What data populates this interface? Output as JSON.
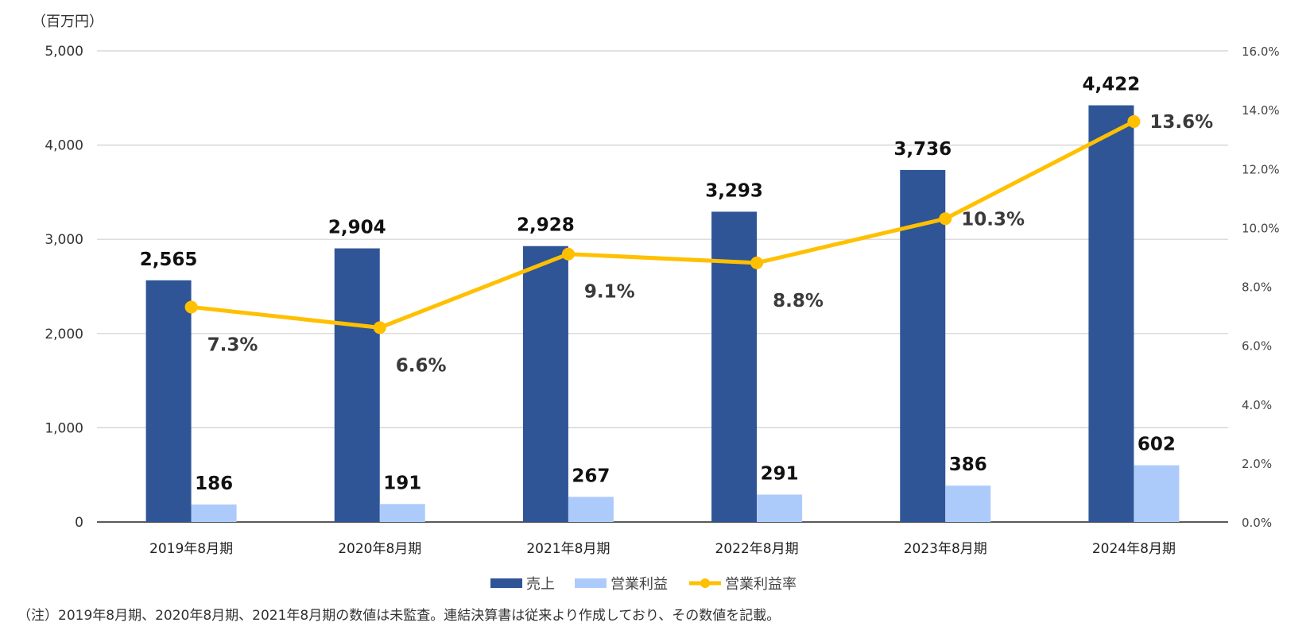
{
  "chart_data": {
    "type": "bar",
    "title": "",
    "y_unit_label": "（百万円）",
    "categories": [
      "2019年8月期",
      "2020年8月期",
      "2021年8月期",
      "2022年8月期",
      "2023年8月期",
      "2024年8月期"
    ],
    "series": [
      {
        "name": "売上",
        "type": "bar",
        "axis": "left",
        "color": "#2F5597",
        "values": [
          2565,
          2904,
          2928,
          3293,
          3736,
          4422
        ],
        "labels": [
          "2,565",
          "2,904",
          "2,928",
          "3,293",
          "3,736",
          "4,422"
        ]
      },
      {
        "name": "営業利益",
        "type": "bar",
        "axis": "left",
        "color": "#ADCBFA",
        "values": [
          186,
          191,
          267,
          291,
          386,
          602
        ],
        "labels": [
          "186",
          "191",
          "267",
          "291",
          "386",
          "602"
        ]
      },
      {
        "name": "営業利益率",
        "type": "line",
        "axis": "right",
        "color": "#FFC000",
        "values": [
          7.3,
          6.6,
          9.1,
          8.8,
          10.3,
          13.6
        ],
        "labels": [
          "7.3%",
          "6.6%",
          "9.1%",
          "8.8%",
          "10.3%",
          "13.6%"
        ]
      }
    ],
    "y_left": {
      "min": 0,
      "max": 5000,
      "ticks": [
        0,
        1000,
        2000,
        3000,
        4000,
        5000
      ],
      "tick_labels": [
        "0",
        "1,000",
        "2,000",
        "3,000",
        "4,000",
        "5,000"
      ]
    },
    "y_right": {
      "min": 0,
      "max": 16,
      "ticks": [
        0,
        2,
        4,
        6,
        8,
        10,
        12,
        14,
        16
      ],
      "tick_labels": [
        "0.0%",
        "2.0%",
        "4.0%",
        "6.0%",
        "8.0%",
        "10.0%",
        "12.0%",
        "14.0%",
        "16.0%"
      ]
    },
    "grid": true,
    "legend_position": "bottom"
  },
  "footnote": "（注）2019年8月期、2020年8月期、2021年8月期の数値は未監査。連結決算書は従来より作成しており、その数値を記載。"
}
